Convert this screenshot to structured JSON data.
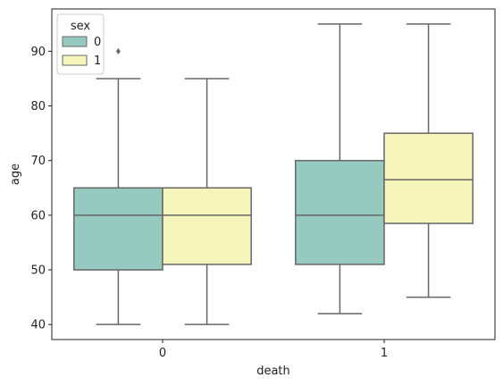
{
  "chart_data": {
    "type": "box",
    "xlabel": "death",
    "ylabel": "age",
    "categories": [
      "0",
      "1"
    ],
    "ylim": [
      37.25,
      97.75
    ],
    "yticks": [
      40,
      50,
      60,
      70,
      80,
      90
    ],
    "grid": false,
    "legend": {
      "title": "sex",
      "position": "top-left",
      "entries": [
        "0",
        "1"
      ]
    },
    "colors": {
      "0": "#96cac1",
      "1": "#f6f6bc",
      "line": "#666666"
    },
    "series": [
      {
        "name": "0",
        "boxes": [
          {
            "category": "0",
            "whislo": 40,
            "q1": 50,
            "med": 60,
            "q3": 65,
            "whishi": 85,
            "fliers": [
              90
            ]
          },
          {
            "category": "1",
            "whislo": 42,
            "q1": 51,
            "med": 60,
            "q3": 70,
            "whishi": 95,
            "fliers": []
          }
        ]
      },
      {
        "name": "1",
        "boxes": [
          {
            "category": "0",
            "whislo": 40,
            "q1": 51,
            "med": 60,
            "q3": 65,
            "whishi": 85,
            "fliers": []
          },
          {
            "category": "1",
            "whislo": 45,
            "q1": 58.5,
            "med": 66.5,
            "q3": 75,
            "whishi": 95,
            "fliers": []
          }
        ]
      }
    ]
  }
}
